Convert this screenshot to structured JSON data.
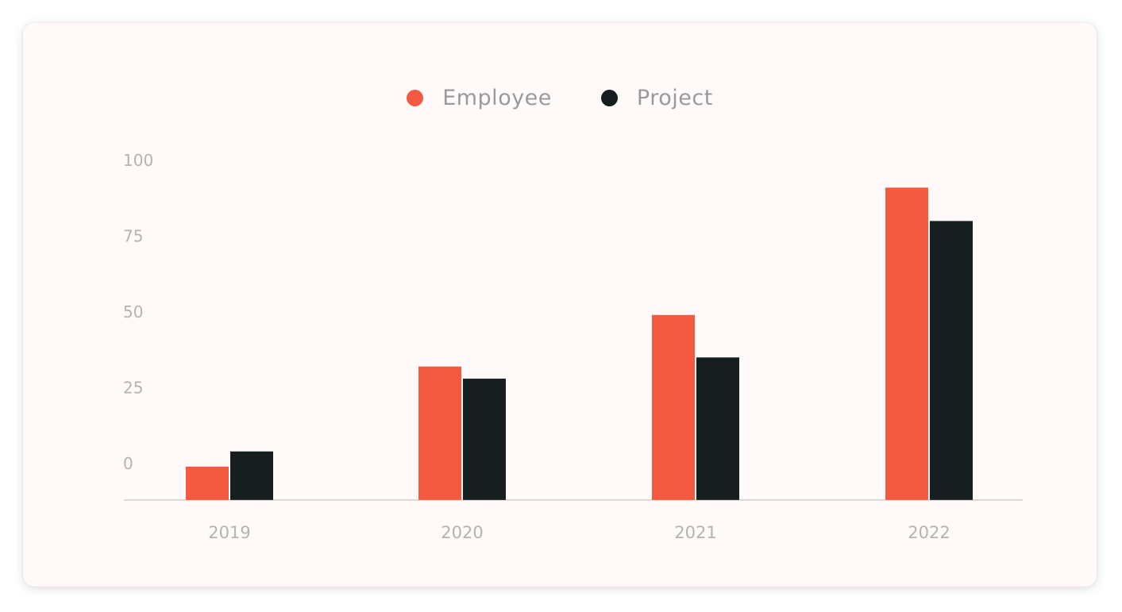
{
  "chart_data": {
    "type": "bar",
    "title": "",
    "xlabel": "",
    "ylabel": "",
    "categories": [
      "2019",
      "2020",
      "2021",
      "2022"
    ],
    "yticks": [
      0,
      25,
      50,
      75,
      100
    ],
    "ylim": [
      -12,
      100
    ],
    "grid": false,
    "legend_position": "top-center",
    "series": [
      {
        "name": "Employee",
        "color": "#f45a3f",
        "values": [
          -1,
          32,
          49,
          91
        ]
      },
      {
        "name": "Project",
        "color": "#161e1f",
        "values": [
          4,
          28,
          35,
          80
        ]
      }
    ]
  }
}
